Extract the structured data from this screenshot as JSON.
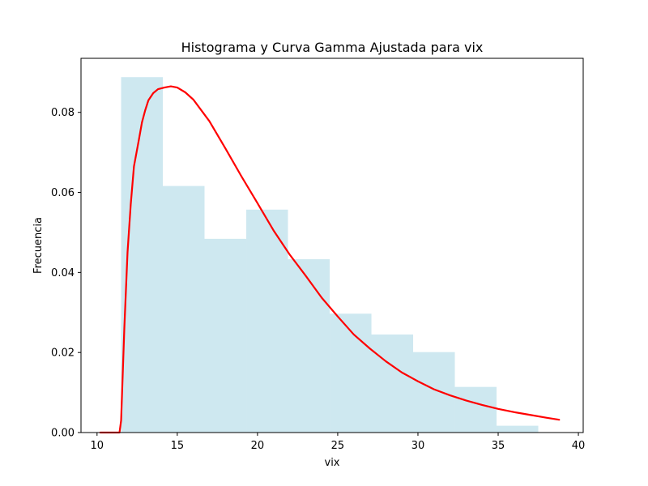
{
  "chart_data": {
    "type": "bar",
    "title": "Histograma y Curva Gamma Ajustada para vix",
    "xlabel": "vix",
    "ylabel": "Frecuencia",
    "xlim": [
      9.0,
      40.3
    ],
    "ylim": [
      0.0,
      0.0935
    ],
    "xticks": [
      10,
      15,
      20,
      25,
      30,
      35,
      40
    ],
    "xtick_labels": [
      "10",
      "15",
      "20",
      "25",
      "30",
      "35",
      "40"
    ],
    "yticks": [
      0.0,
      0.02,
      0.04,
      0.06,
      0.08
    ],
    "ytick_labels": [
      "0.00",
      "0.02",
      "0.04",
      "0.06",
      "0.08"
    ],
    "grid": false,
    "histogram": {
      "bin_edges": [
        11.5,
        14.1,
        16.7,
        19.3,
        21.9,
        24.5,
        27.1,
        29.7,
        32.3,
        34.9,
        37.5
      ],
      "values": [
        0.0888,
        0.0616,
        0.0484,
        0.0557,
        0.0433,
        0.0297,
        0.0245,
        0.0201,
        0.0114,
        0.0017
      ],
      "color": "#add8e6",
      "alpha": 0.6
    },
    "curve": {
      "name": "Gamma fit",
      "color": "#ff0000",
      "x": [
        10.2,
        11.4,
        11.5,
        11.7,
        11.9,
        12.1,
        12.3,
        12.6,
        12.8,
        13.0,
        13.2,
        13.5,
        13.8,
        14.2,
        14.6,
        15.0,
        15.5,
        16.0,
        17.0,
        18.0,
        19.0,
        20.0,
        21.0,
        22.0,
        23.0,
        24.0,
        25.0,
        26.0,
        27.0,
        28.0,
        29.0,
        30.0,
        31.0,
        32.0,
        33.0,
        34.0,
        35.0,
        36.0,
        37.0,
        38.0,
        38.8
      ],
      "y": [
        0.0,
        0.0,
        0.003,
        0.026,
        0.045,
        0.057,
        0.0665,
        0.073,
        0.0775,
        0.0805,
        0.083,
        0.0848,
        0.0858,
        0.0862,
        0.0865,
        0.0862,
        0.085,
        0.0832,
        0.0778,
        0.071,
        0.064,
        0.0573,
        0.0505,
        0.0445,
        0.0392,
        0.0337,
        0.029,
        0.0245,
        0.021,
        0.0178,
        0.015,
        0.0128,
        0.0108,
        0.0093,
        0.008,
        0.0069,
        0.0059,
        0.0051,
        0.0044,
        0.0037,
        0.0032
      ]
    }
  }
}
